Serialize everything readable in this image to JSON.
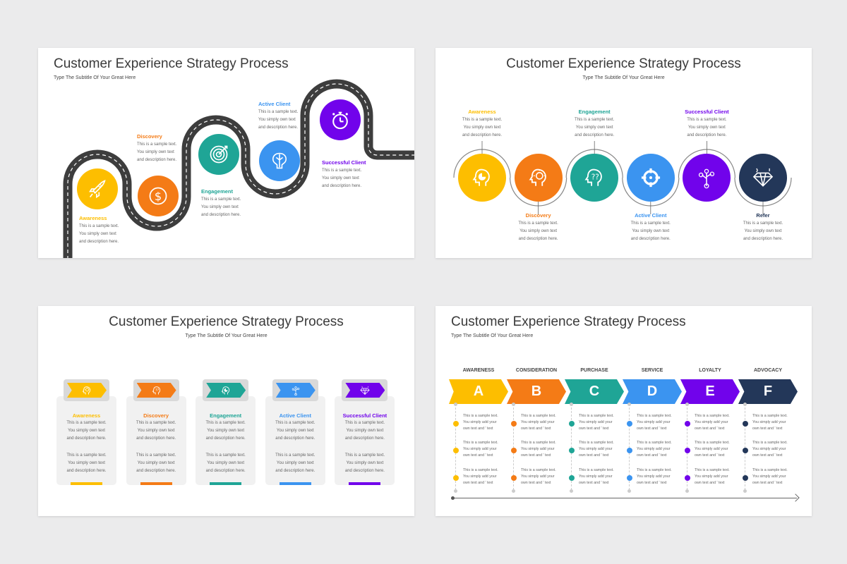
{
  "colors": {
    "yellow": "#FDBE00",
    "orange": "#F47B16",
    "teal": "#1FA596",
    "blue": "#3B94F0",
    "purple": "#7103EB",
    "navy": "#233759",
    "road": "#3d3d3d"
  },
  "slide1": {
    "title": "Customer Experience Strategy Process",
    "subtitle": "Type The Subtitle Of Your Great Here",
    "steps": [
      {
        "label": "Awareness",
        "color": "#FDBE00",
        "icon": "rocket-icon",
        "body": "This is a sample text.\nYou simply own text\nand description here."
      },
      {
        "label": "Discovery",
        "color": "#F47B16",
        "icon": "dollar-icon",
        "body": "This is a sample text.\nYou simply own text\nand description here."
      },
      {
        "label": "Engagement",
        "color": "#1FA596",
        "icon": "target-icon",
        "body": "This is a sample text.\nYou simply own text\nand description here."
      },
      {
        "label": "Active Client",
        "color": "#3B94F0",
        "icon": "brain-icon",
        "body": "This is a sample text.\nYou simply own text\nand description here."
      },
      {
        "label": "Successful Client",
        "color": "#7103EB",
        "icon": "stopwatch-icon",
        "body": "This is a sample text.\nYou simply own text\nand description here."
      }
    ]
  },
  "slide2": {
    "title": "Customer Experience Strategy Process",
    "subtitle": "Type The Subtitle Of Your Great Here",
    "steps": [
      {
        "label": "Awareness",
        "color": "#FDBE00",
        "icon": "head-chart-icon",
        "body": "This is a sample text.\nYou simply own text\nand description here."
      },
      {
        "label": "Discovery",
        "color": "#F47B16",
        "icon": "head-idea-icon",
        "body": "This is a sample text.\nYou simply own text\nand description here."
      },
      {
        "label": "Engagement",
        "color": "#1FA596",
        "icon": "head-question-icon",
        "body": "This is a sample text.\nYou simply own text\nand description here."
      },
      {
        "label": "Active Client",
        "color": "#3B94F0",
        "icon": "crosshair-icon",
        "body": "This is a sample text.\nYou simply own text\nand description here."
      },
      {
        "label": "Successful Client",
        "color": "#7103EB",
        "icon": "money-tree-icon",
        "body": "This is a sample text.\nYou simply own text\nand description here."
      },
      {
        "label": "Refer",
        "color": "#233759",
        "icon": "diamond-icon",
        "body": "This is a sample text.\nYou simply own text\nand description here."
      }
    ]
  },
  "slide3": {
    "title": "Customer Experience Strategy Process",
    "subtitle": "Type The Subtitle Of Your Great Here",
    "cards": [
      {
        "label": "Awareness",
        "color": "#FDBE00",
        "icon": "head-idea-icon",
        "body1": "This is a sample text.\nYou simply own text\nand description here.",
        "body2": "This is a sample text.\nYou simply own text\nand description here."
      },
      {
        "label": "Discovery",
        "color": "#F47B16",
        "icon": "head-question-icon",
        "body1": "This is a sample text.\nYou simply own text\nand description here.",
        "body2": "This is a sample text.\nYou simply own text\nand description here."
      },
      {
        "label": "Engagement",
        "color": "#1FA596",
        "icon": "head-chart-icon",
        "body1": "This is a sample text.\nYou simply own text\nand description here.",
        "body2": "This is a sample text.\nYou simply own text\nand description here."
      },
      {
        "label": "Active Client",
        "color": "#3B94F0",
        "icon": "money-tree-icon",
        "body1": "This is a sample text.\nYou simply own text\nand description here.",
        "body2": "This is a sample text.\nYou simply own text\nand description here."
      },
      {
        "label": "Successful Client",
        "color": "#7103EB",
        "icon": "diamond-icon",
        "body1": "This is a sample text.\nYou simply own text\nand description here.",
        "body2": "This is a sample text.\nYou simply own text\nand description here."
      }
    ]
  },
  "slide4": {
    "title": "Customer Experience Strategy Process",
    "subtitle": "Type The Subtitle Of Your Great Here",
    "stages": [
      {
        "header": "AWARENESS",
        "letter": "A",
        "color": "#FDBE00"
      },
      {
        "header": "CONSIDERATION",
        "letter": "B",
        "color": "#F47B16"
      },
      {
        "header": "PURCHASE",
        "letter": "C",
        "color": "#1FA596"
      },
      {
        "header": "SERVICE",
        "letter": "D",
        "color": "#3B94F0"
      },
      {
        "header": "LOYALTY",
        "letter": "E",
        "color": "#7103EB"
      },
      {
        "header": "ADVOCACY",
        "letter": "F",
        "color": "#233759"
      }
    ],
    "row_text": "This is a sample text.\nYou simply add your\nown text and ' text"
  }
}
